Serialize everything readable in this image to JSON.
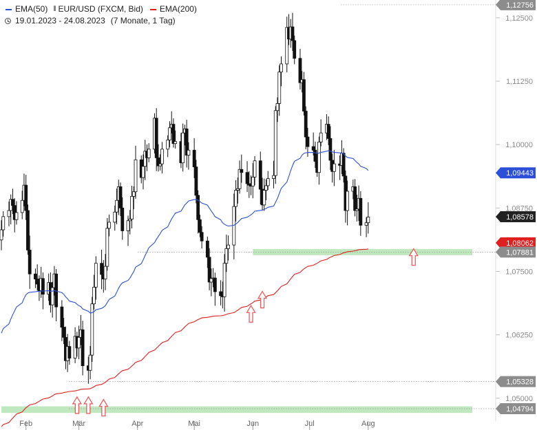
{
  "header": {
    "instrument": "EUR/USD (FXCM, Bid)",
    "ema50_label": "EMA(50)",
    "ema200_label": "EMA(200)",
    "date_range": "19.01.2023 - 24.08.2023",
    "period": "(7 Monate, 1 Tag)"
  },
  "icons": {
    "clock": "clock-icon",
    "candles": "candlestick-icon",
    "arrows": "arrow-up-icon"
  },
  "colors": {
    "ema50": "#2b4fd8",
    "ema200": "#e01f1f",
    "candle": "#111111",
    "support_zone": "#bfe8bf",
    "tag_dark": "#555555",
    "tag_gray": "#8c8c8c",
    "arrow": "#ef5b5b"
  },
  "chart_data": {
    "type": "candlestick",
    "x_range": [
      "2023-01-19",
      "2023-08-24"
    ],
    "ylim": [
      1.0455,
      1.1285
    ],
    "y_ticks": [
      "1,05000",
      "1,06250",
      "1,07500",
      "1,08750",
      "1,10000",
      "1,11250",
      "1,12500"
    ],
    "x_ticks": [
      {
        "date": "2023-02-01",
        "label": "Feb"
      },
      {
        "date": "2023-03-01",
        "label": "Mär"
      },
      {
        "date": "2023-04-01",
        "label": "Apr"
      },
      {
        "date": "2023-05-01",
        "label": "Mai"
      },
      {
        "date": "2023-06-01",
        "label": "Jun"
      },
      {
        "date": "2023-07-01",
        "label": "Jul"
      },
      {
        "date": "2023-08-01",
        "label": "Aug"
      }
    ],
    "close": [
      1.0832,
      1.0858,
      1.087,
      1.0892,
      1.088,
      1.0852,
      1.0866,
      1.089,
      1.092,
      1.087,
      1.0792,
      1.0745,
      1.0735,
      1.0725,
      1.0712,
      1.0736,
      1.0705,
      1.0728,
      1.0684,
      1.0718,
      1.0745,
      1.068,
      1.064,
      1.062,
      1.0574,
      1.0602,
      1.0579,
      1.0622,
      1.0599,
      1.062,
      1.0635,
      1.0564,
      1.0555,
      1.0585,
      1.0686,
      1.0719,
      1.0766,
      1.0744,
      1.0735,
      1.076,
      1.0835,
      1.0847,
      1.0867,
      1.089,
      1.0917,
      1.0875,
      1.083,
      1.085,
      1.0853,
      1.0898,
      1.0907,
      1.097,
      1.0935,
      1.0957,
      1.0987,
      1.0974,
      1.0991,
      1.1052,
      1.0974,
      1.0958,
      1.0962,
      1.0991,
      1.1009,
      1.1033,
      1.104,
      1.1002,
      1.1006,
      1.0964,
      1.1023,
      1.1031,
      1.0979,
      1.0989,
      1.0956,
      1.09,
      1.0852,
      1.0827,
      1.081,
      1.0778,
      1.0729,
      1.0736,
      1.0737,
      1.071,
      1.0702,
      1.07,
      1.0766,
      1.0795,
      1.0802,
      1.0878,
      1.091,
      1.0913,
      1.0951,
      1.0945,
      1.0923,
      1.092,
      1.0918,
      1.0936,
      1.0968,
      1.0912,
      1.0881,
      1.091,
      1.0919,
      1.0933,
      1.0939,
      1.1067,
      1.1081,
      1.1143,
      1.1159,
      1.1231,
      1.1208,
      1.1232,
      1.1205,
      1.117,
      1.1122,
      1.1128,
      1.1066,
      1.1015,
      1.0996,
      1.0989,
      1.0967,
      1.0945,
      1.1005,
      1.1023,
      1.104,
      1.1012,
      1.0969,
      1.0947,
      1.0962,
      1.0959,
      1.0983,
      1.0938,
      1.087,
      1.0908,
      1.0917,
      1.087,
      1.0873,
      1.0894,
      1.0841,
      1.0846,
      1.0857
    ],
    "ema50_last": 1.09443,
    "ema200_last": 1.08062,
    "ema200_extended_to": "2023-08-24",
    "levels": [
      {
        "label": "1,12756",
        "value": 1.12756
      },
      {
        "label": "1,09443",
        "value": 1.09443
      },
      {
        "label": "1,08578",
        "value": 1.08578
      },
      {
        "label": "1,08062",
        "value": 1.08062
      },
      {
        "label": "1,07881",
        "value": 1.07881
      },
      {
        "label": "1,05328",
        "value": 1.05328
      },
      {
        "label": "1,04794",
        "value": 1.04794
      }
    ],
    "support_zones": [
      {
        "from": 1.0782,
        "to": 1.0794,
        "start": "2023-06-01"
      },
      {
        "from": 1.0471,
        "to": 1.0484,
        "start": "2023-01-19"
      }
    ],
    "arrows": [
      {
        "date": "2023-02-28",
        "price": 1.047
      },
      {
        "date": "2023-03-06",
        "price": 1.047
      },
      {
        "date": "2023-03-14",
        "price": 1.0465
      },
      {
        "date": "2023-05-31",
        "price": 1.065
      },
      {
        "date": "2023-06-06",
        "price": 1.0678
      },
      {
        "date": "2023-08-25",
        "price": 1.0762
      }
    ]
  }
}
